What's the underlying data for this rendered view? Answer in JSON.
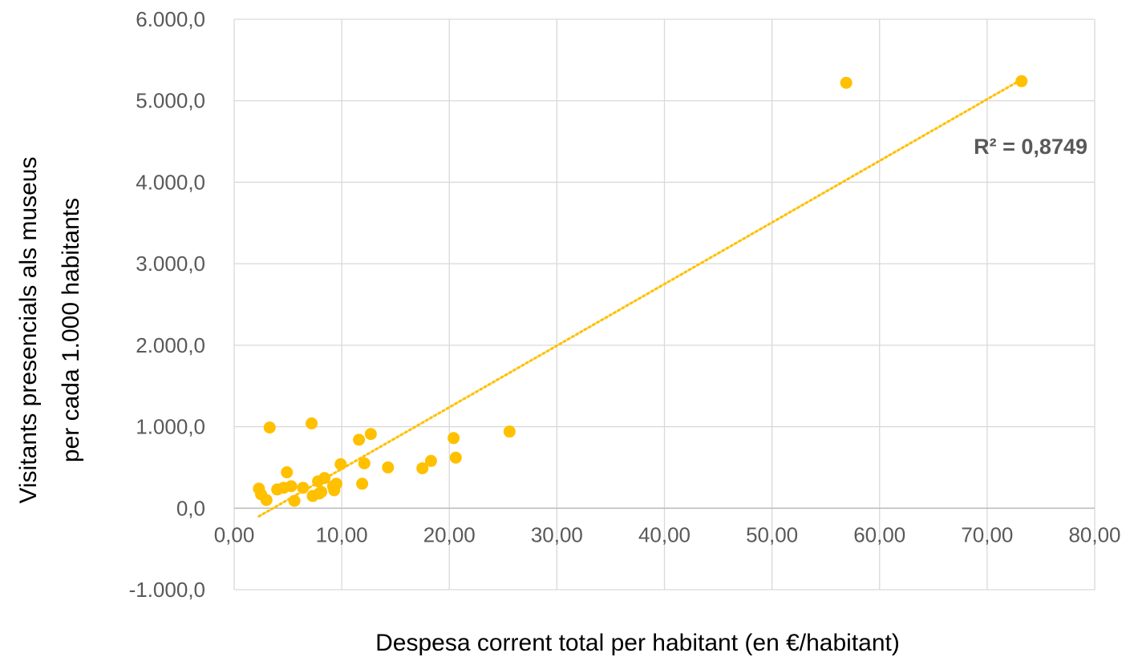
{
  "chart_data": {
    "type": "scatter",
    "xlabel": "Despesa corrent total per habitant (en €/habitant)",
    "ylabel_lines": [
      "Visitants presencials als museus",
      "per cada 1.000 habitants"
    ],
    "xlim": [
      0,
      80
    ],
    "ylim": [
      -1000,
      6000
    ],
    "x_ticks": [
      0,
      10,
      20,
      30,
      40,
      50,
      60,
      70,
      80
    ],
    "y_ticks": [
      -1000,
      0,
      1000,
      2000,
      3000,
      4000,
      5000,
      6000
    ],
    "x_tick_labels": [
      "0,00",
      "10,00",
      "20,00",
      "30,00",
      "40,00",
      "50,00",
      "60,00",
      "70,00",
      "80,00"
    ],
    "y_tick_labels": [
      "-1.000,0",
      "0,0",
      "1.000,0",
      "2.000,0",
      "3.000,0",
      "4.000,0",
      "5.000,0",
      "6.000,0"
    ],
    "grid": true,
    "marker_color": "#FFC000",
    "trendline": {
      "type": "linear",
      "style": "dotted",
      "color": "#FFC000",
      "x_range": [
        2.3,
        73.2
      ],
      "y_at_start": -100,
      "y_at_end": 5260,
      "label": "R² = 0,8749"
    },
    "points": [
      {
        "x": 2.3,
        "y": 240
      },
      {
        "x": 2.5,
        "y": 170
      },
      {
        "x": 3.0,
        "y": 100
      },
      {
        "x": 3.3,
        "y": 990
      },
      {
        "x": 4.0,
        "y": 230
      },
      {
        "x": 4.6,
        "y": 250
      },
      {
        "x": 4.9,
        "y": 440
      },
      {
        "x": 5.3,
        "y": 270
      },
      {
        "x": 5.6,
        "y": 90
      },
      {
        "x": 6.4,
        "y": 250
      },
      {
        "x": 7.2,
        "y": 1040
      },
      {
        "x": 7.3,
        "y": 150
      },
      {
        "x": 7.8,
        "y": 330
      },
      {
        "x": 7.9,
        "y": 180
      },
      {
        "x": 8.1,
        "y": 200
      },
      {
        "x": 8.4,
        "y": 370
      },
      {
        "x": 9.2,
        "y": 270
      },
      {
        "x": 9.3,
        "y": 220
      },
      {
        "x": 9.5,
        "y": 300
      },
      {
        "x": 9.9,
        "y": 540
      },
      {
        "x": 11.6,
        "y": 840
      },
      {
        "x": 11.9,
        "y": 300
      },
      {
        "x": 12.1,
        "y": 550
      },
      {
        "x": 12.7,
        "y": 910
      },
      {
        "x": 14.3,
        "y": 500
      },
      {
        "x": 17.5,
        "y": 490
      },
      {
        "x": 18.3,
        "y": 580
      },
      {
        "x": 20.4,
        "y": 860
      },
      {
        "x": 20.6,
        "y": 620
      },
      {
        "x": 25.6,
        "y": 940
      },
      {
        "x": 56.9,
        "y": 5220
      },
      {
        "x": 73.2,
        "y": 5240
      }
    ]
  }
}
